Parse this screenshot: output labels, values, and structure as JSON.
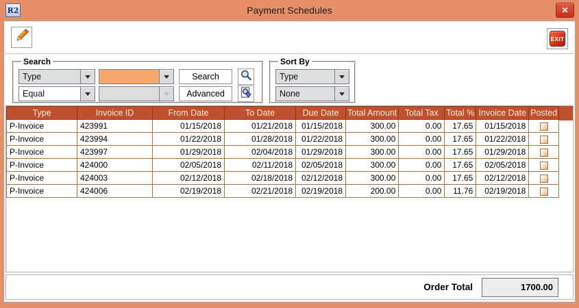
{
  "window": {
    "title": "Payment Schedules",
    "icon_text": "R2",
    "close_icon": "✕"
  },
  "toolbar": {
    "edit_icon": "pencil-icon",
    "exit_label": "EXIT"
  },
  "search": {
    "legend": "Search",
    "field_selected": "Type",
    "operator_selected": "Equal",
    "value_text": "",
    "value2_text": "",
    "search_button": "Search",
    "advanced_button": "Advanced"
  },
  "sort_by": {
    "legend": "Sort By",
    "primary_selected": "Type",
    "secondary_selected": "None"
  },
  "table": {
    "columns": [
      "Type",
      "Invoice ID",
      "From Date",
      "To Date",
      "Due Date",
      "Total Amount",
      "Total Tax",
      "Total %",
      "Invoice Date",
      "Posted"
    ],
    "rows": [
      {
        "type": "P-Invoice",
        "invoice_id": "423991",
        "from_date": "01/15/2018",
        "to_date": "01/21/2018",
        "due_date": "01/15/2018",
        "total_amount": "300.00",
        "total_tax": "0.00",
        "total_pct": "17.65",
        "invoice_date": "01/15/2018",
        "posted": false
      },
      {
        "type": "P-Invoice",
        "invoice_id": "423994",
        "from_date": "01/22/2018",
        "to_date": "01/28/2018",
        "due_date": "01/22/2018",
        "total_amount": "300.00",
        "total_tax": "0.00",
        "total_pct": "17.65",
        "invoice_date": "01/22/2018",
        "posted": false
      },
      {
        "type": "P-Invoice",
        "invoice_id": "423997",
        "from_date": "01/29/2018",
        "to_date": "02/04/2018",
        "due_date": "01/29/2018",
        "total_amount": "300.00",
        "total_tax": "0.00",
        "total_pct": "17.65",
        "invoice_date": "01/29/2018",
        "posted": false
      },
      {
        "type": "P-Invoice",
        "invoice_id": "424000",
        "from_date": "02/05/2018",
        "to_date": "02/11/2018",
        "due_date": "02/05/2018",
        "total_amount": "300.00",
        "total_tax": "0.00",
        "total_pct": "17.65",
        "invoice_date": "02/05/2018",
        "posted": false
      },
      {
        "type": "P-Invoice",
        "invoice_id": "424003",
        "from_date": "02/12/2018",
        "to_date": "02/18/2018",
        "due_date": "02/12/2018",
        "total_amount": "300.00",
        "total_tax": "0.00",
        "total_pct": "17.65",
        "invoice_date": "02/12/2018",
        "posted": false
      },
      {
        "type": "P-Invoice",
        "invoice_id": "424006",
        "from_date": "02/19/2018",
        "to_date": "02/21/2018",
        "due_date": "02/19/2018",
        "total_amount": "200.00",
        "total_tax": "0.00",
        "total_pct": "11.76",
        "invoice_date": "02/19/2018",
        "posted": false
      }
    ]
  },
  "footer": {
    "order_total_label": "Order Total",
    "order_total_value": "1700.00"
  },
  "colors": {
    "accent_orange": "#E68E66",
    "table_header_bg": "#C0512F",
    "grid_line": "#A9713C",
    "highlight_field": "#F5A76C",
    "exit_red": "#E03018",
    "close_red": "#D23E2B"
  }
}
